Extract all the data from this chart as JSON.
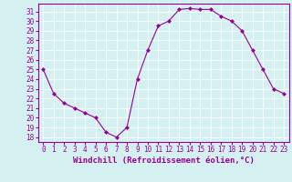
{
  "x": [
    0,
    1,
    2,
    3,
    4,
    5,
    6,
    7,
    8,
    9,
    10,
    11,
    12,
    13,
    14,
    15,
    16,
    17,
    18,
    19,
    20,
    21,
    22,
    23
  ],
  "y": [
    25,
    22.5,
    21.5,
    21,
    20.5,
    20,
    18.5,
    18,
    19,
    24,
    27,
    29.5,
    30,
    31.2,
    31.3,
    31.2,
    31.2,
    30.5,
    30,
    29,
    27,
    25,
    23,
    22.5
  ],
  "line_color": "#990099",
  "marker": "D",
  "marker_size": 2,
  "bg_color": "#d4f0f0",
  "grid_color": "#ffffff",
  "xlabel": "Windchill (Refroidissement éolien,°C)",
  "xlabel_color": "#990099",
  "ylabel_ticks": [
    18,
    19,
    20,
    21,
    22,
    23,
    24,
    25,
    26,
    27,
    28,
    29,
    30,
    31
  ],
  "xticks": [
    0,
    1,
    2,
    3,
    4,
    5,
    6,
    7,
    8,
    9,
    10,
    11,
    12,
    13,
    14,
    15,
    16,
    17,
    18,
    19,
    20,
    21,
    22,
    23
  ],
  "ylim": [
    17.5,
    31.8
  ],
  "xlim": [
    -0.5,
    23.5
  ],
  "tick_color": "#990099",
  "tick_fontsize": 5.5,
  "xlabel_fontsize": 6.5,
  "spine_color": "#990099"
}
